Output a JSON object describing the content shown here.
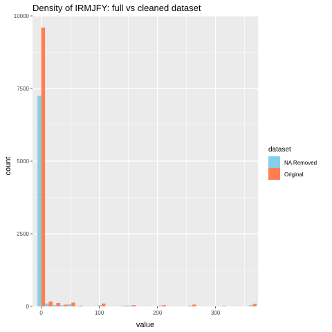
{
  "chart_data": {
    "type": "bar",
    "title": "Density of IRMJFY: full vs cleaned dataset",
    "xlabel": "value",
    "ylabel": "count",
    "xlim": [
      -15,
      373
    ],
    "ylim": [
      0,
      10000
    ],
    "x_ticks": [
      0,
      100,
      200,
      300
    ],
    "y_ticks": [
      0,
      2500,
      5000,
      7500,
      10000
    ],
    "x_tick_labels": [
      "0",
      "100",
      "200",
      "300"
    ],
    "y_tick_labels": [
      "0",
      "2500",
      "5000",
      "7500",
      "10000"
    ],
    "grid": true,
    "legend": {
      "title": "dataset",
      "position": "right"
    },
    "bin_centers": [
      0,
      13,
      26,
      39,
      52,
      65,
      78,
      91,
      104,
      117,
      130,
      143,
      156,
      169,
      182,
      195,
      208,
      221,
      234,
      247,
      260,
      273,
      286,
      299,
      312,
      325,
      338,
      351,
      364
    ],
    "series": [
      {
        "name": "NA Removed",
        "color": "#87ceeb",
        "values": [
          7250,
          100,
          50,
          40,
          80,
          10,
          5,
          5,
          40,
          5,
          5,
          20,
          30,
          5,
          5,
          5,
          30,
          5,
          5,
          5,
          30,
          5,
          5,
          5,
          10,
          5,
          5,
          5,
          40
        ]
      },
      {
        "name": "Original",
        "color": "#ff7f50",
        "values": [
          9600,
          170,
          120,
          60,
          130,
          25,
          5,
          5,
          100,
          5,
          5,
          25,
          45,
          5,
          5,
          5,
          45,
          5,
          5,
          5,
          60,
          5,
          5,
          5,
          20,
          5,
          5,
          5,
          85
        ]
      }
    ]
  }
}
